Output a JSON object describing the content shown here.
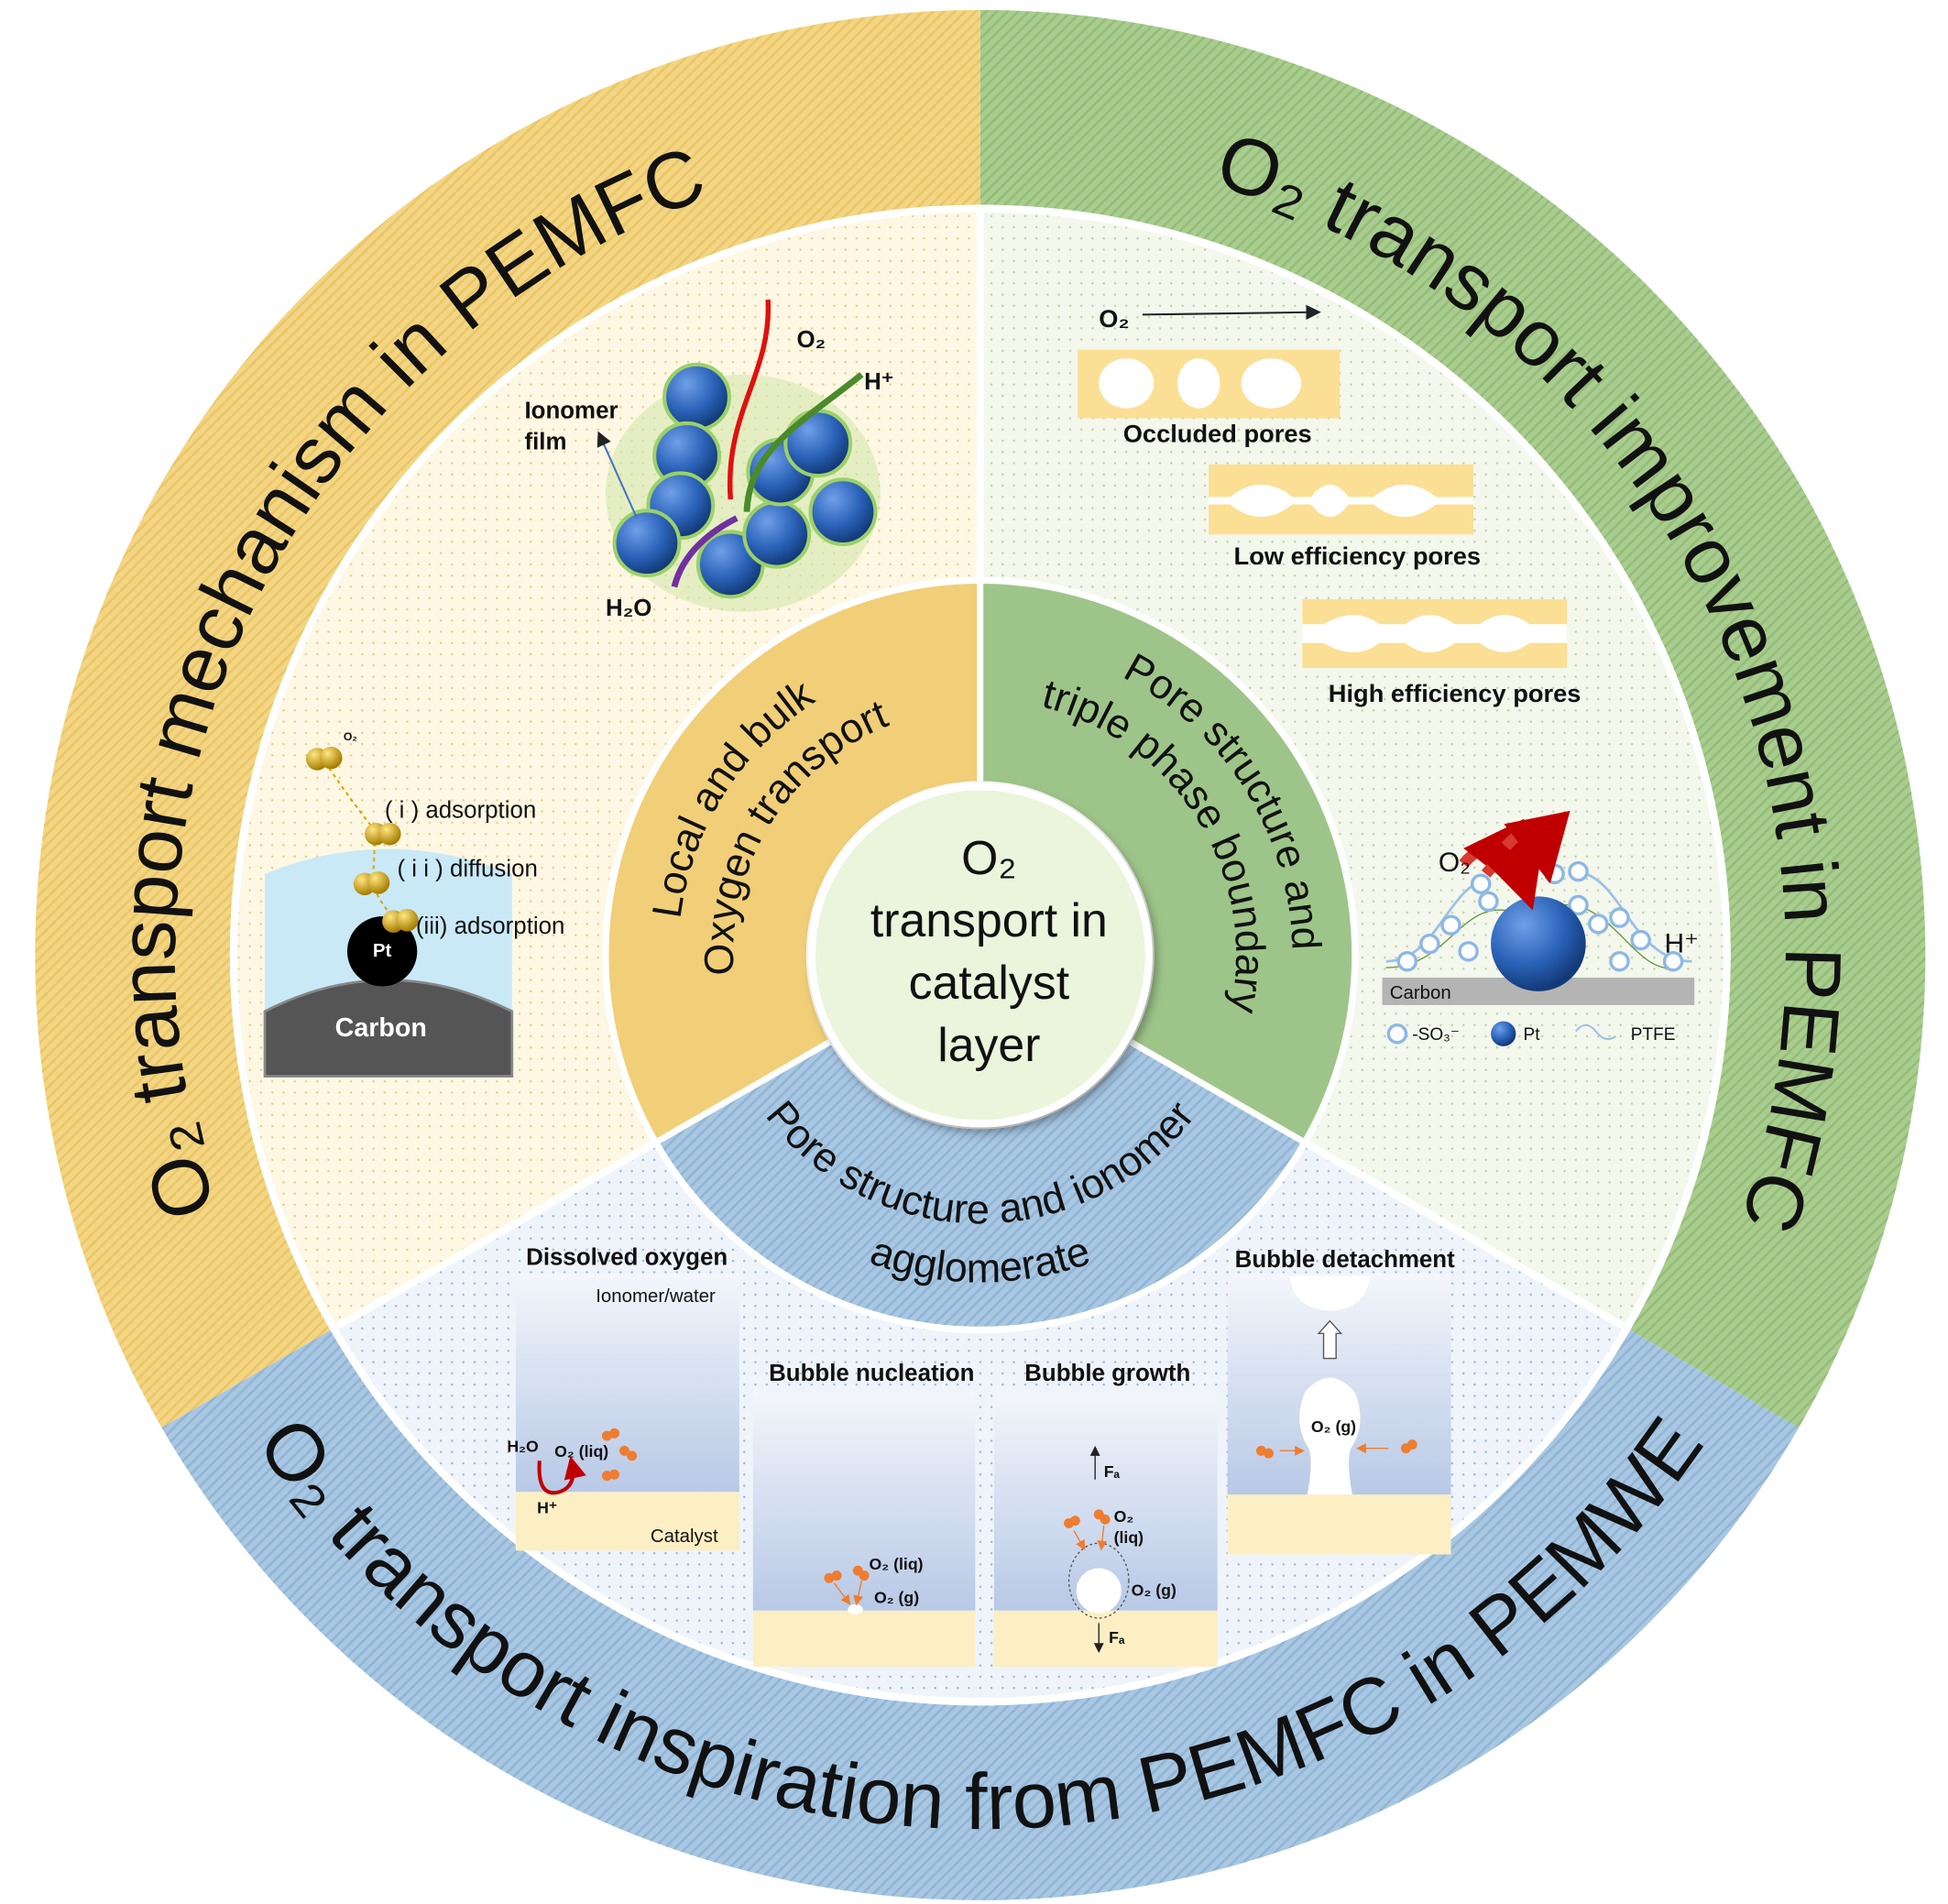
{
  "center": {
    "lines": [
      "O₂",
      "transport in",
      "catalyst",
      "layer"
    ]
  },
  "inner_ring": {
    "local": {
      "lines": [
        "Local and bulk",
        "Oxygen transport"
      ]
    },
    "pore_tpb": {
      "lines": [
        "Pore structure and",
        "triple phase boundary"
      ]
    },
    "pore_ionomer": {
      "lines": [
        "Pore structure and ionomer",
        "agglomerate"
      ]
    }
  },
  "outer_ring": {
    "mechanism": "O₂ transport mechanism in PEMFC",
    "improvement": "O₂ transport improvement in PEMFC",
    "inspiration": "O₂ transport inspiration from PEMFC in PEMWE"
  },
  "mechanism_panel": {
    "agglomerate": {
      "ionomer_film": [
        "Ionomer",
        "film"
      ],
      "o2": "O₂",
      "h_plus": "H⁺",
      "h2o": "H₂O"
    },
    "steps": {
      "o2": "O₂",
      "step1": "( i ) adsorption",
      "step2": "( i i ) diffusion",
      "step3": "(iii) adsorption",
      "pt": "Pt",
      "carbon": "Carbon"
    }
  },
  "improvement_panel": {
    "pores": {
      "o2": "O₂",
      "occluded": "Occluded pores",
      "low": "Low efficiency pores",
      "high": "High efficiency pores"
    },
    "ptfe": {
      "o2": "O₂",
      "h_plus": "H⁺",
      "carbon": "Carbon",
      "legend": {
        "so3": "-SO₃⁻",
        "pt": "Pt",
        "ptfe": "PTFE"
      }
    }
  },
  "pemwe_panel": {
    "dissolved": {
      "title": "Dissolved oxygen",
      "ionomer_water": "Ionomer/water",
      "h2o": "H₂O",
      "o2_liq": "O₂ (liq)",
      "h_plus": "H⁺",
      "catalyst": "Catalyst"
    },
    "nucleation": {
      "title": "Bubble nucleation",
      "o2_liq": "O₂ (liq)",
      "o2_g": "O₂ (g)"
    },
    "growth": {
      "title": "Bubble growth",
      "fa_up": "Fₐ",
      "o2_liq": [
        "O₂",
        "(liq)"
      ],
      "o2_g": "O₂ (g)",
      "fa_down": "Fₐ"
    },
    "detachment": {
      "title": "Bubble detachment",
      "o2_g": "O₂ (g)"
    }
  },
  "colors": {
    "yellow_band": "#f3d584",
    "green_band": "#a9cd8f",
    "blue_band": "#a8c7e2",
    "yellow_inner": "#f1cf78",
    "green_inner": "#9ec589",
    "blue_inner": "#9fc0de",
    "center_fill": "#eaf5dc",
    "catalyst": "#fcefc4",
    "oxygen_orange": "#ee7d30",
    "pt_blue": "#2a62b8"
  }
}
